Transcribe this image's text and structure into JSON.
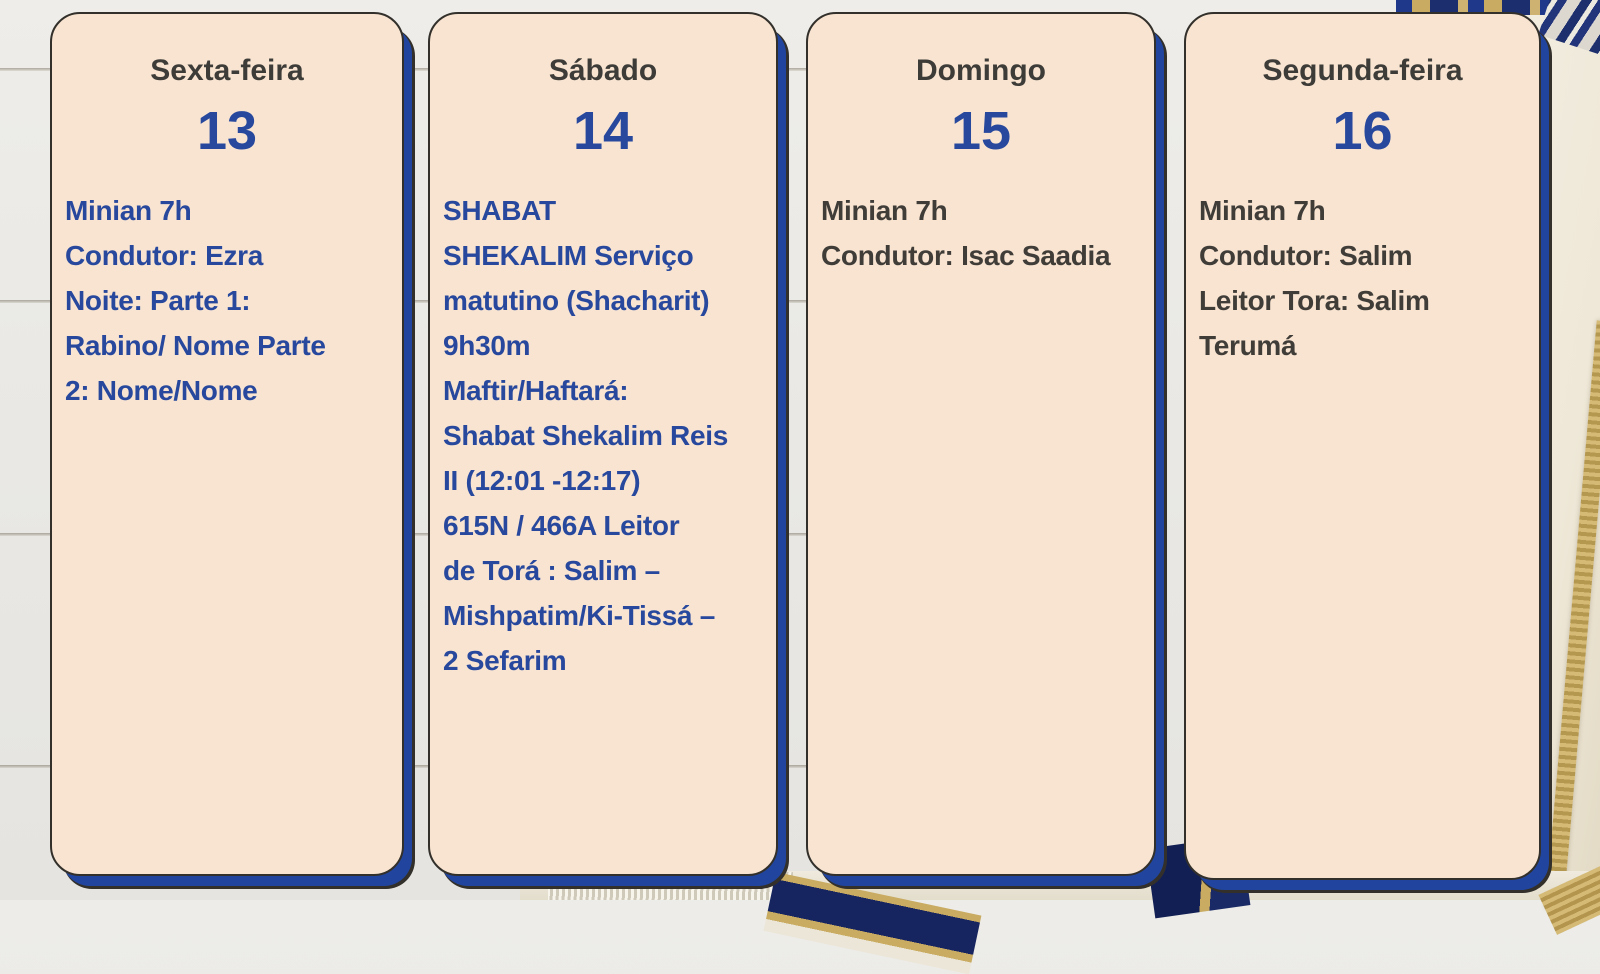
{
  "board": {
    "cards": [
      {
        "day": "Sexta-feira",
        "date": "13",
        "body": "Minian 7h\nCondutor: Ezra\nNoite: Parte 1:\nRabino/ Nome Parte\n2: Nome/Nome"
      },
      {
        "day": "Sábado",
        "date": "14",
        "body": "SHABAT\nSHEKALIM Serviço\nmatutino (Shacharit)\n9h30m\nMaftir/Haftará:\nShabat Shekalim Reis\nII (12:01 -12:17)\n615N / 466A Leitor\nde Torá : Salim –\nMishpatim/Ki-Tissá –\n2 Sefarim"
      },
      {
        "day": "Domingo",
        "date": "15",
        "body": "Minian 7h\nCondutor: Isac Saadia"
      },
      {
        "day": "Segunda-feira",
        "date": "16",
        "body": "Minian 7h\nCondutor: Salim\nLeitor Tora: Salim\nTerumá"
      }
    ]
  },
  "colors": {
    "card_background": "#f8e4d1",
    "card_border_dark": "#33302b",
    "accent_blue": "#27489d",
    "shadow_blue": "#21459e",
    "heading_dark": "#3e3c38",
    "body_dark": "#403d39",
    "fabric_gold": "#c9ac62",
    "fabric_navy": "#1d2e6e"
  }
}
